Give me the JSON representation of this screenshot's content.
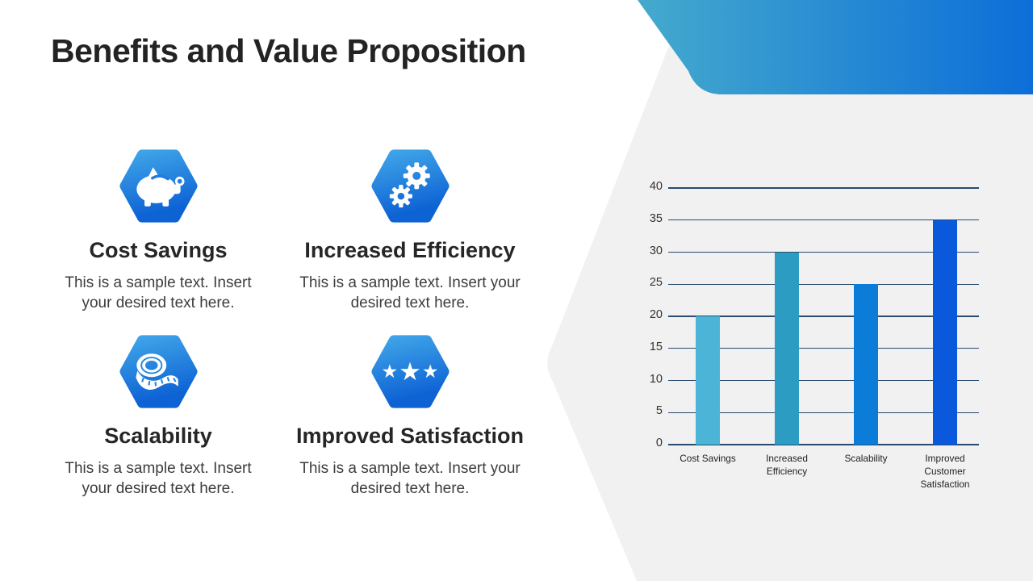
{
  "slide": {
    "title": "Benefits and Value Proposition",
    "colors": {
      "title_text": "#232323",
      "banner_gradient_start": "#45AACD",
      "banner_gradient_end": "#0C6ED8",
      "side_panel_bg": "#F1F1F2",
      "icon_gradient_start": "#3FA4E8",
      "icon_gradient_end": "#0D62D4"
    },
    "features": [
      {
        "icon": "piggy-bank-icon",
        "title": "Cost Savings",
        "description": "This is a sample text. Insert your desired text here."
      },
      {
        "icon": "gears-icon",
        "title": "Increased Efficiency",
        "description": "This is a sample text. Insert your desired text here."
      },
      {
        "icon": "measuring-tape-icon",
        "title": "Scalability",
        "description": "This is a sample text. Insert your desired text here."
      },
      {
        "icon": "stars-icon",
        "title": "Improved Satisfaction",
        "description": "This is a sample text. Insert your desired text here."
      }
    ],
    "icons": {
      "star_glyph": "★"
    }
  },
  "chart_data": {
    "type": "bar",
    "categories": [
      "Cost Savings",
      "Increased Efficiency",
      "Scalability",
      "Improved Customer Satisfaction"
    ],
    "values": [
      20,
      30,
      25,
      35
    ],
    "bar_colors": [
      "#4CB4D6",
      "#2C9CC3",
      "#0C7CD9",
      "#0A58DC"
    ],
    "title": "",
    "xlabel": "",
    "ylabel": "",
    "ylim": [
      0,
      40
    ],
    "ytick_step": 5,
    "grid": true,
    "gridline_color": "#2A4A6E",
    "tick_label_color": "#333333",
    "legend": false
  }
}
